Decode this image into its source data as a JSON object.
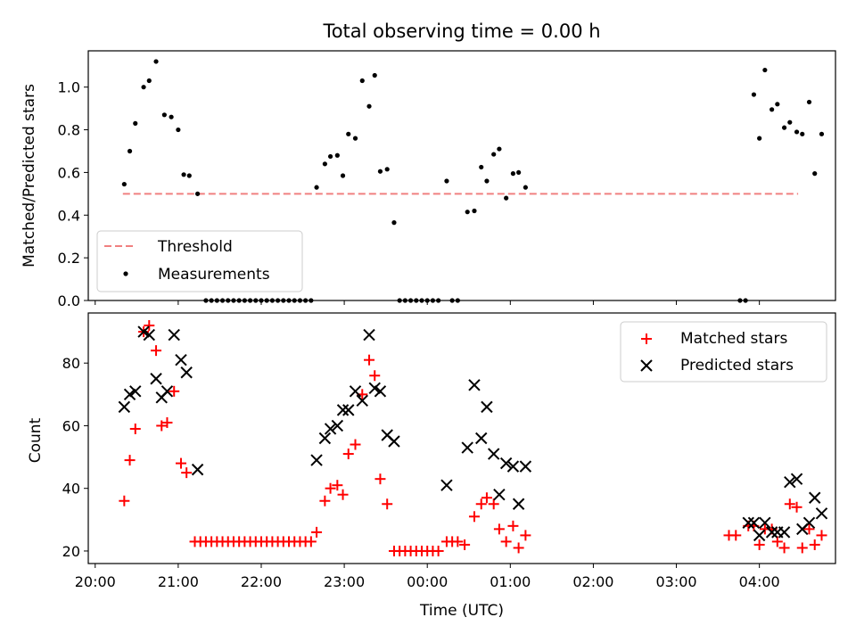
{
  "figure": {
    "title": "Total observing time = 0.00 h"
  },
  "chart_data": [
    {
      "type": "scatter",
      "title": "Total observing time = 0.00 h",
      "xlabel": "",
      "ylabel": "Matched/Predicted stars",
      "xlim": [
        "19:55",
        "04:55"
      ],
      "ylim": [
        0.0,
        1.17
      ],
      "y_ticks": [
        "0.0",
        "0.2",
        "0.4",
        "0.6",
        "0.8",
        "1.0"
      ],
      "legend": "lower-left",
      "grid": false,
      "threshold": {
        "name": "Threshold",
        "color": "#f08080",
        "style": "dashed",
        "y": 0.5,
        "x_range": [
          "20:20",
          "04:28"
        ]
      },
      "series": [
        {
          "name": "Measurements",
          "color": "#000000",
          "marker": "dot",
          "points": [
            [
              "20:21",
              0.545
            ],
            [
              "20:25",
              0.7
            ],
            [
              "20:29",
              0.83
            ],
            [
              "20:35",
              1.0
            ],
            [
              "20:39",
              1.03
            ],
            [
              "20:44",
              1.12
            ],
            [
              "20:50",
              0.87
            ],
            [
              "20:55",
              0.86
            ],
            [
              "21:00",
              0.8
            ],
            [
              "21:04",
              0.59
            ],
            [
              "21:08",
              0.585
            ],
            [
              "21:14",
              0.5
            ],
            [
              "21:20",
              0.0
            ],
            [
              "21:24",
              0.0
            ],
            [
              "21:28",
              0.0
            ],
            [
              "21:32",
              0.0
            ],
            [
              "21:36",
              0.0
            ],
            [
              "21:40",
              0.0
            ],
            [
              "21:44",
              0.0
            ],
            [
              "21:48",
              0.0
            ],
            [
              "21:52",
              0.0
            ],
            [
              "21:56",
              0.0
            ],
            [
              "22:00",
              0.0
            ],
            [
              "22:04",
              0.0
            ],
            [
              "22:08",
              0.0
            ],
            [
              "22:12",
              0.0
            ],
            [
              "22:16",
              0.0
            ],
            [
              "22:20",
              0.0
            ],
            [
              "22:24",
              0.0
            ],
            [
              "22:28",
              0.0
            ],
            [
              "22:32",
              0.0
            ],
            [
              "22:36",
              0.0
            ],
            [
              "22:40",
              0.53
            ],
            [
              "22:46",
              0.64
            ],
            [
              "22:50",
              0.675
            ],
            [
              "22:55",
              0.68
            ],
            [
              "22:59",
              0.585
            ],
            [
              "23:03",
              0.78
            ],
            [
              "23:08",
              0.76
            ],
            [
              "23:13",
              1.03
            ],
            [
              "23:18",
              0.91
            ],
            [
              "23:22",
              1.055
            ],
            [
              "23:26",
              0.605
            ],
            [
              "23:31",
              0.615
            ],
            [
              "23:36",
              0.365
            ],
            [
              "23:40",
              0.0
            ],
            [
              "23:44",
              0.0
            ],
            [
              "23:48",
              0.0
            ],
            [
              "23:52",
              0.0
            ],
            [
              "23:56",
              0.0
            ],
            [
              "00:00",
              0.0
            ],
            [
              "00:04",
              0.0
            ],
            [
              "00:08",
              0.0
            ],
            [
              "00:14",
              0.56
            ],
            [
              "00:18",
              0.0
            ],
            [
              "00:22",
              0.0
            ],
            [
              "00:29",
              0.415
            ],
            [
              "00:34",
              0.42
            ],
            [
              "00:39",
              0.625
            ],
            [
              "00:43",
              0.56
            ],
            [
              "00:48",
              0.685
            ],
            [
              "00:52",
              0.71
            ],
            [
              "00:57",
              0.48
            ],
            [
              "01:02",
              0.595
            ],
            [
              "01:06",
              0.6
            ],
            [
              "01:11",
              0.53
            ],
            [
              "03:46",
              0.0
            ],
            [
              "03:50",
              0.0
            ],
            [
              "03:56",
              0.965
            ],
            [
              "04:00",
              0.76
            ],
            [
              "04:04",
              1.08
            ],
            [
              "04:09",
              0.895
            ],
            [
              "04:13",
              0.92
            ],
            [
              "04:18",
              0.81
            ],
            [
              "04:22",
              0.835
            ],
            [
              "04:27",
              0.79
            ],
            [
              "04:31",
              0.78
            ],
            [
              "04:36",
              0.93
            ],
            [
              "04:40",
              0.595
            ],
            [
              "04:45",
              0.78
            ]
          ]
        }
      ]
    },
    {
      "type": "scatter",
      "title": "",
      "xlabel": "Time (UTC)",
      "ylabel": "Count",
      "xlim": [
        "19:55",
        "04:55"
      ],
      "ylim": [
        16,
        96
      ],
      "y_ticks": [
        "20",
        "40",
        "60",
        "80"
      ],
      "x_ticks": [
        "20:00",
        "21:00",
        "22:00",
        "23:00",
        "00:00",
        "01:00",
        "02:00",
        "03:00",
        "04:00"
      ],
      "legend": "upper-right",
      "grid": false,
      "series": [
        {
          "name": "Matched stars",
          "color": "#ff0000",
          "marker": "plus",
          "points": [
            [
              "20:21",
              36
            ],
            [
              "20:25",
              49
            ],
            [
              "20:29",
              59
            ],
            [
              "20:35",
              90
            ],
            [
              "20:39",
              92
            ],
            [
              "20:44",
              84
            ],
            [
              "20:48",
              60
            ],
            [
              "20:52",
              61
            ],
            [
              "20:57",
              71
            ],
            [
              "21:02",
              48
            ],
            [
              "21:06",
              45
            ],
            [
              "21:12",
              23
            ],
            [
              "21:16",
              23
            ],
            [
              "21:20",
              23
            ],
            [
              "21:24",
              23
            ],
            [
              "21:28",
              23
            ],
            [
              "21:32",
              23
            ],
            [
              "21:36",
              23
            ],
            [
              "21:40",
              23
            ],
            [
              "21:44",
              23
            ],
            [
              "21:48",
              23
            ],
            [
              "21:52",
              23
            ],
            [
              "21:56",
              23
            ],
            [
              "22:00",
              23
            ],
            [
              "22:04",
              23
            ],
            [
              "22:08",
              23
            ],
            [
              "22:12",
              23
            ],
            [
              "22:16",
              23
            ],
            [
              "22:20",
              23
            ],
            [
              "22:24",
              23
            ],
            [
              "22:28",
              23
            ],
            [
              "22:32",
              23
            ],
            [
              "22:36",
              23
            ],
            [
              "22:40",
              26
            ],
            [
              "22:46",
              36
            ],
            [
              "22:50",
              40
            ],
            [
              "22:55",
              41
            ],
            [
              "22:59",
              38
            ],
            [
              "23:03",
              51
            ],
            [
              "23:08",
              54
            ],
            [
              "23:13",
              70
            ],
            [
              "23:18",
              81
            ],
            [
              "23:22",
              76
            ],
            [
              "23:26",
              43
            ],
            [
              "23:31",
              35
            ],
            [
              "23:36",
              20
            ],
            [
              "23:40",
              20
            ],
            [
              "23:44",
              20
            ],
            [
              "23:48",
              20
            ],
            [
              "23:52",
              20
            ],
            [
              "23:56",
              20
            ],
            [
              "00:00",
              20
            ],
            [
              "00:04",
              20
            ],
            [
              "00:08",
              20
            ],
            [
              "00:14",
              23
            ],
            [
              "00:18",
              23
            ],
            [
              "00:22",
              23
            ],
            [
              "00:27",
              22
            ],
            [
              "00:34",
              31
            ],
            [
              "00:39",
              35
            ],
            [
              "00:43",
              37
            ],
            [
              "00:48",
              35
            ],
            [
              "00:52",
              27
            ],
            [
              "00:57",
              23
            ],
            [
              "01:02",
              28
            ],
            [
              "01:06",
              21
            ],
            [
              "01:11",
              25
            ],
            [
              "03:38",
              25
            ],
            [
              "03:43",
              25
            ],
            [
              "03:52",
              28
            ],
            [
              "03:56",
              28
            ],
            [
              "04:00",
              22
            ],
            [
              "04:04",
              27
            ],
            [
              "04:09",
              27
            ],
            [
              "04:13",
              23
            ],
            [
              "04:18",
              21
            ],
            [
              "04:22",
              35
            ],
            [
              "04:27",
              34
            ],
            [
              "04:31",
              21
            ],
            [
              "04:36",
              27
            ],
            [
              "04:40",
              22
            ],
            [
              "04:45",
              25
            ]
          ]
        },
        {
          "name": "Predicted stars",
          "color": "#000000",
          "marker": "x",
          "points": [
            [
              "20:21",
              66
            ],
            [
              "20:25",
              70
            ],
            [
              "20:29",
              71
            ],
            [
              "20:35",
              90
            ],
            [
              "20:39",
              89
            ],
            [
              "20:44",
              75
            ],
            [
              "20:48",
              69
            ],
            [
              "20:52",
              71
            ],
            [
              "20:57",
              89
            ],
            [
              "21:02",
              81
            ],
            [
              "21:06",
              77
            ],
            [
              "21:14",
              46
            ],
            [
              "22:40",
              49
            ],
            [
              "22:46",
              56
            ],
            [
              "22:50",
              59
            ],
            [
              "22:55",
              60
            ],
            [
              "22:59",
              65
            ],
            [
              "23:03",
              65
            ],
            [
              "23:08",
              71
            ],
            [
              "23:13",
              68
            ],
            [
              "23:18",
              89
            ],
            [
              "23:22",
              72
            ],
            [
              "23:26",
              71
            ],
            [
              "23:31",
              57
            ],
            [
              "23:36",
              55
            ],
            [
              "00:14",
              41
            ],
            [
              "00:29",
              53
            ],
            [
              "00:34",
              73
            ],
            [
              "00:39",
              56
            ],
            [
              "00:43",
              66
            ],
            [
              "00:48",
              51
            ],
            [
              "00:52",
              38
            ],
            [
              "00:57",
              48
            ],
            [
              "01:02",
              47
            ],
            [
              "01:06",
              35
            ],
            [
              "01:11",
              47
            ],
            [
              "03:52",
              29
            ],
            [
              "03:56",
              29
            ],
            [
              "04:00",
              25
            ],
            [
              "04:04",
              29
            ],
            [
              "04:09",
              26
            ],
            [
              "04:13",
              26
            ],
            [
              "04:18",
              26
            ],
            [
              "04:22",
              42
            ],
            [
              "04:27",
              43
            ],
            [
              "04:31",
              27
            ],
            [
              "04:36",
              29
            ],
            [
              "04:40",
              37
            ],
            [
              "04:45",
              32
            ]
          ]
        }
      ]
    }
  ]
}
